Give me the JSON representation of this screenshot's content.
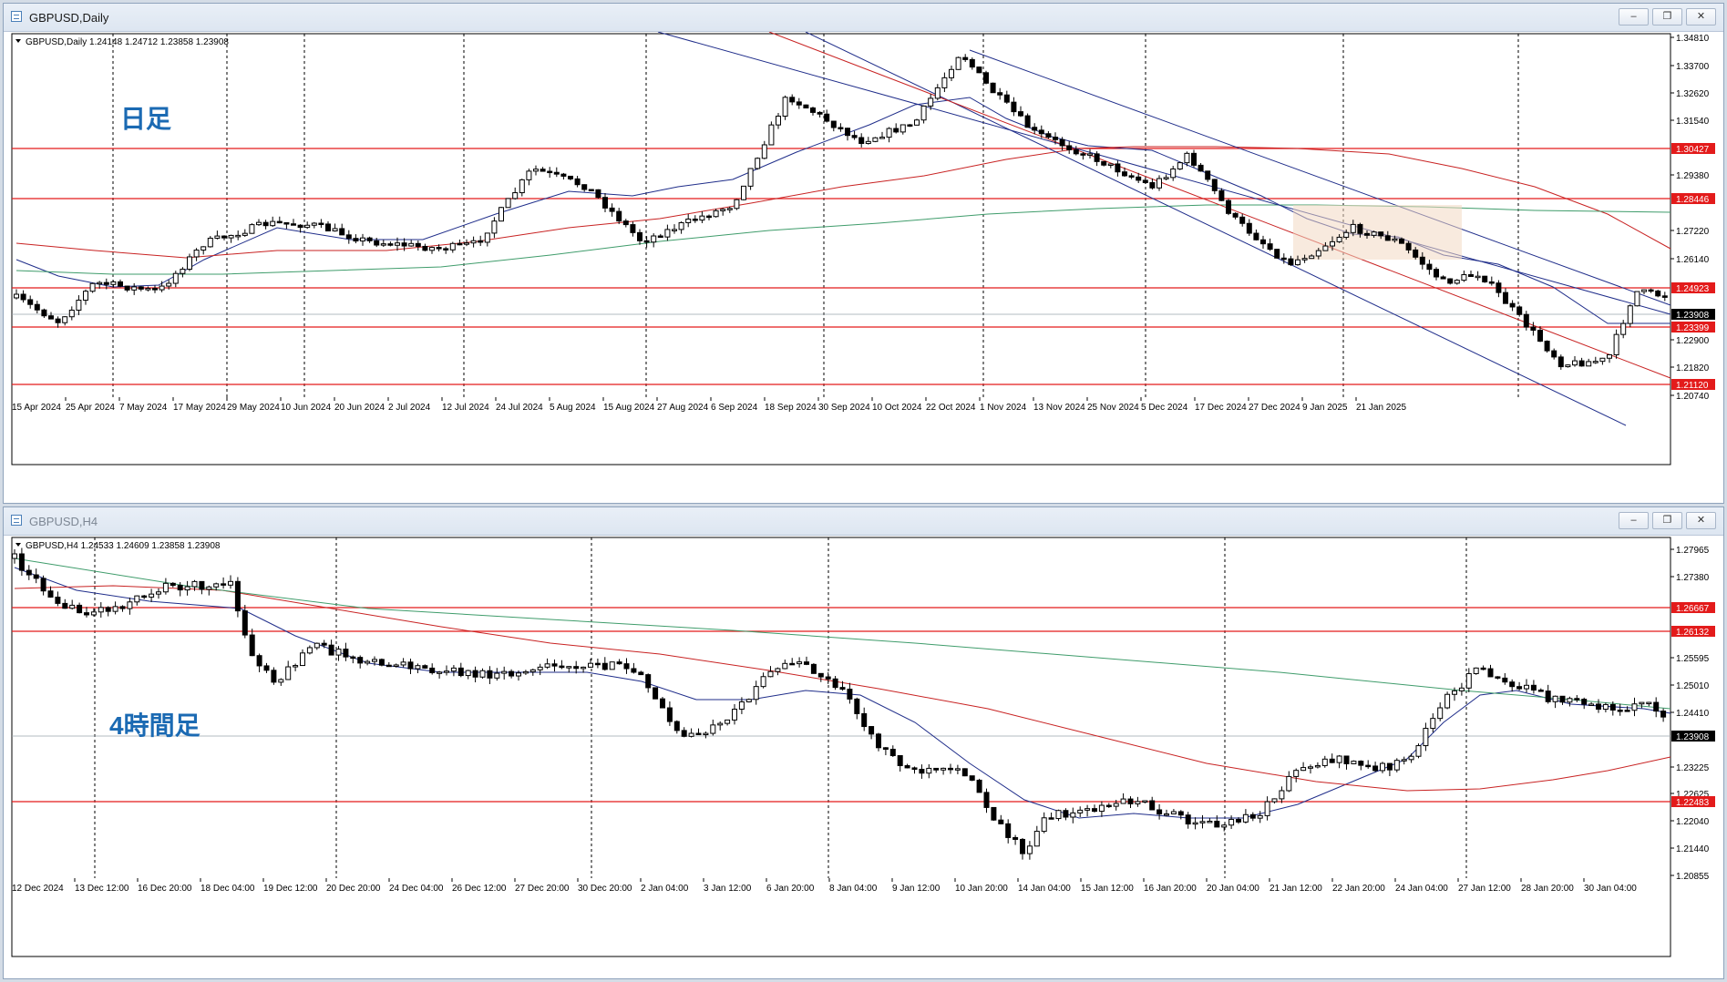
{
  "top_window": {
    "title": "GBPUSD,Daily",
    "header": "GBPUSD,Daily  1.24148 1.24712 1.23858 1.23908",
    "annotation": "日足",
    "price_ticks": [
      "1.34810",
      "1.33700",
      "1.32620",
      "1.31540",
      "1.29380",
      "1.27220",
      "1.26140",
      "1.22900",
      "1.21820",
      "1.20740"
    ],
    "price_labels": [
      {
        "text": "1.30427",
        "color": "#e31b1b"
      },
      {
        "text": "1.28446",
        "color": "#e31b1b"
      },
      {
        "text": "1.24923",
        "color": "#e31b1b"
      },
      {
        "text": "1.23908",
        "color": "#000000"
      },
      {
        "text": "1.23399",
        "color": "#e31b1b"
      },
      {
        "text": "1.21120",
        "color": "#e31b1b"
      }
    ],
    "time_labels": [
      "15 Apr 2024",
      "25 Apr 2024",
      "7 May 2024",
      "17 May 2024",
      "29 May 2024",
      "10 Jun 2024",
      "20 Jun 2024",
      "2 Jul 2024",
      "12 Jul 2024",
      "24 Jul 2024",
      "5 Aug 2024",
      "15 Aug 2024",
      "27 Aug 2024",
      "6 Sep 2024",
      "18 Sep 2024",
      "30 Sep 2024",
      "10 Oct 2024",
      "22 Oct 2024",
      "1 Nov 2024",
      "13 Nov 2024",
      "25 Nov 2024",
      "5 Dec 2024",
      "17 Dec 2024",
      "27 Dec 2024",
      "9 Jan 2025",
      "21 Jan 2025"
    ]
  },
  "bottom_window": {
    "title": "GBPUSD,H4",
    "header": "GBPUSD,H4  1.24533 1.24609 1.23858 1.23908",
    "annotation": "4時間足",
    "price_ticks": [
      "1.27965",
      "1.27380",
      "1.25595",
      "1.25010",
      "1.24410",
      "1.23225",
      "1.22625",
      "1.22040",
      "1.21440",
      "1.20855"
    ],
    "price_labels": [
      {
        "text": "1.26667",
        "color": "#e31b1b"
      },
      {
        "text": "1.26132",
        "color": "#e31b1b"
      },
      {
        "text": "1.23908",
        "color": "#000000"
      },
      {
        "text": "1.22483",
        "color": "#e31b1b"
      }
    ],
    "time_labels": [
      "12 Dec 2024",
      "13 Dec 12:00",
      "16 Dec 20:00",
      "18 Dec 04:00",
      "19 Dec 12:00",
      "20 Dec 20:00",
      "24 Dec 04:00",
      "26 Dec 12:00",
      "27 Dec 20:00",
      "30 Dec 20:00",
      "2 Jan 04:00",
      "3 Jan 12:00",
      "6 Jan 20:00",
      "8 Jan 04:00",
      "9 Jan 12:00",
      "10 Jan 20:00",
      "14 Jan 04:00",
      "15 Jan 12:00",
      "16 Jan 20:00",
      "20 Jan 04:00",
      "21 Jan 12:00",
      "22 Jan 20:00",
      "24 Jan 04:00",
      "27 Jan 12:00",
      "28 Jan 20:00",
      "30 Jan 04:00"
    ]
  },
  "window_buttons": {
    "minimize": "–",
    "restore": "❐",
    "close": "✕"
  }
}
